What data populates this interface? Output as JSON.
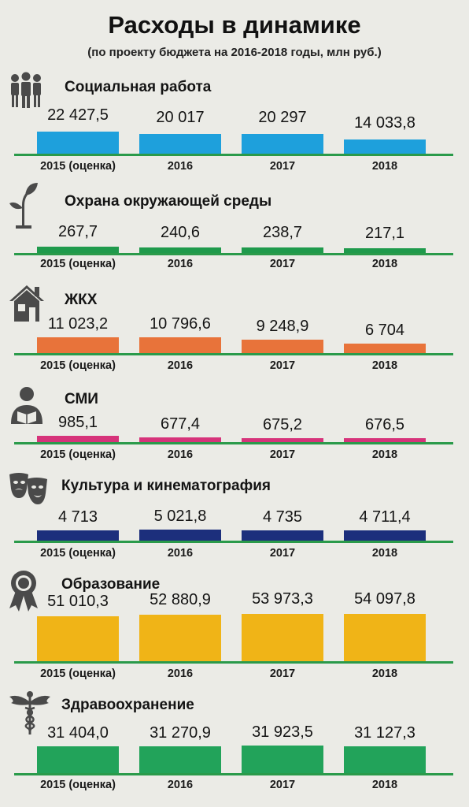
{
  "header": {
    "title": "Расходы в динамике",
    "subtitle": "(по проекту бюджета на 2016-2018 годы, млн руб.)"
  },
  "chart_data": [
    {
      "type": "bar",
      "title": "Социальная работа",
      "icon": "people-icon",
      "color": "#1ea0dc",
      "categories": [
        "2015 (оценка)",
        "2016",
        "2017",
        "2018"
      ],
      "values": [
        22427.5,
        20017,
        20297,
        14033.8
      ],
      "value_labels": [
        "22 427,5",
        "20 017",
        "20 297",
        "14 033,8"
      ]
    },
    {
      "type": "bar",
      "title": "Охрана окружающей среды",
      "icon": "sprout-icon",
      "color": "#1f9a4c",
      "categories": [
        "2015 (оценка)",
        "2016",
        "2017",
        "2018"
      ],
      "values": [
        267.7,
        240.6,
        238.7,
        217.1
      ],
      "value_labels": [
        "267,7",
        "240,6",
        "238,7",
        "217,1"
      ]
    },
    {
      "type": "bar",
      "title": "ЖКХ",
      "icon": "house-icon",
      "color": "#e8733a",
      "categories": [
        "2015 (оценка)",
        "2016",
        "2017",
        "2018"
      ],
      "values": [
        11023.2,
        10796.6,
        9248.9,
        6704
      ],
      "value_labels": [
        "11 023,2",
        "10 796,6",
        "9 248,9",
        "6 704"
      ]
    },
    {
      "type": "bar",
      "title": "СМИ",
      "icon": "reader-icon",
      "color": "#d6337a",
      "categories": [
        "2015 (оценка)",
        "2016",
        "2017",
        "2018"
      ],
      "values": [
        985.1,
        677.4,
        675.2,
        676.5
      ],
      "value_labels": [
        "985,1",
        "677,4",
        "675,2",
        "676,5"
      ]
    },
    {
      "type": "bar",
      "title": "Культура и кинематография",
      "icon": "theater-masks-icon",
      "color": "#1c2f7c",
      "categories": [
        "2015 (оценка)",
        "2016",
        "2017",
        "2018"
      ],
      "values": [
        4713,
        5021.8,
        4735,
        4711.4
      ],
      "value_labels": [
        "4 713",
        "5 021,8",
        "4 735",
        "4 711,4"
      ]
    },
    {
      "type": "bar",
      "title": "Образование",
      "icon": "medal-icon",
      "color": "#f0b417",
      "categories": [
        "2015 (оценка)",
        "2016",
        "2017",
        "2018"
      ],
      "values": [
        51010.3,
        52880.9,
        53973.3,
        54097.8
      ],
      "value_labels": [
        "51 010,3",
        "52 880,9",
        "53 973,3",
        "54 097,8"
      ]
    },
    {
      "type": "bar",
      "title": "Здравоохранение",
      "icon": "caduceus-icon",
      "color": "#22a35a",
      "categories": [
        "2015 (оценка)",
        "2016",
        "2017",
        "2018"
      ],
      "values": [
        31404.0,
        31270.9,
        31923.5,
        31127.3
      ],
      "value_labels": [
        "31 404,0",
        "31 270,9",
        "31 923,5",
        "31 127,3"
      ]
    }
  ]
}
